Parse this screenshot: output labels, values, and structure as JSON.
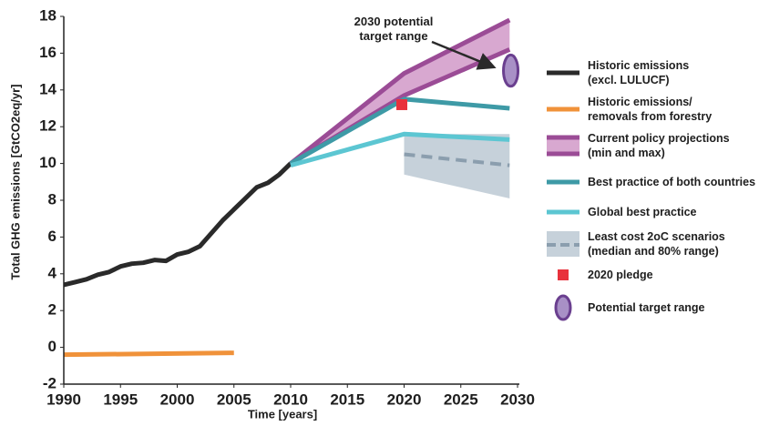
{
  "chart_data": {
    "type": "line",
    "xlabel": "Time [years]",
    "ylabel": "Total GHG emissions [GtCO2eq/yr]",
    "annotation": "2030 potential\ntarget range",
    "xlim": [
      1990,
      2030
    ],
    "ylim": [
      -2,
      18
    ],
    "xticks": [
      1990,
      1995,
      2000,
      2005,
      2010,
      2015,
      2020,
      2025,
      2030
    ],
    "yticks": [
      -2,
      0,
      2,
      4,
      6,
      8,
      10,
      12,
      14,
      16,
      18
    ],
    "series": [
      {
        "name": "Historic emissions\n(excl. LULUCF)",
        "kind": "line",
        "color": "#2a2a2a",
        "x": [
          1990,
          1991,
          1992,
          1993,
          1994,
          1995,
          1996,
          1997,
          1998,
          1999,
          2000,
          2001,
          2002,
          2003,
          2004,
          2005,
          2006,
          2007,
          2008,
          2009,
          2010
        ],
        "values": [
          3.4,
          3.55,
          3.7,
          3.95,
          4.1,
          4.4,
          4.55,
          4.6,
          4.75,
          4.7,
          5.05,
          5.2,
          5.5,
          6.2,
          6.9,
          7.5,
          8.1,
          8.7,
          8.95,
          9.4,
          10.0
        ]
      },
      {
        "name": "Historic emissions/\nremovals from forestry",
        "kind": "line",
        "color": "#f0923a",
        "x": [
          1990,
          2005
        ],
        "values": [
          -0.4,
          -0.3
        ]
      },
      {
        "name": "Current policy projections\n(min and max)",
        "kind": "band",
        "color": "#9b4c96",
        "fill": "#d8a8d0",
        "x": [
          2010,
          2020,
          2029.3
        ],
        "lower": [
          10.0,
          13.7,
          16.2
        ],
        "upper": [
          10.0,
          14.9,
          17.8
        ]
      },
      {
        "name": "Best practice of both countries",
        "kind": "line",
        "color": "#3e9aa6",
        "x": [
          2010,
          2020,
          2029.3
        ],
        "values": [
          10.0,
          13.5,
          13.0
        ]
      },
      {
        "name": "Global best practice",
        "kind": "line",
        "color": "#5cc6d2",
        "x": [
          2010,
          2020,
          2029.3
        ],
        "values": [
          9.9,
          11.6,
          11.3
        ]
      },
      {
        "name": "Least cost 2oC scenarios\n(median and 80% range)",
        "kind": "dashed-band",
        "color": "#8b9eae",
        "fill": "#c6d1da",
        "x": [
          2020,
          2029.3
        ],
        "values": [
          10.5,
          9.9
        ],
        "lower": [
          9.4,
          8.1
        ],
        "upper": [
          11.6,
          11.6
        ]
      },
      {
        "name": "2020 pledge",
        "kind": "point",
        "color": "#e8323c",
        "x": [
          2019.8
        ],
        "values": [
          13.2
        ]
      },
      {
        "name": "Potential target range",
        "kind": "ellipse",
        "color": "#6a3f8f",
        "fill": "#a890c6",
        "x": [
          2029.4
        ],
        "lower": [
          14.2
        ],
        "upper": [
          15.9
        ]
      }
    ]
  }
}
